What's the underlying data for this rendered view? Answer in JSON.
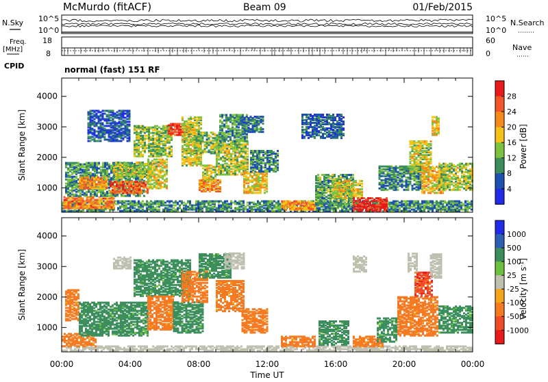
{
  "header": {
    "station": "McMurdo (fitACF)",
    "beam": "Beam 09",
    "date": "01/Feb/2015"
  },
  "top_panels": {
    "nsky_label": "N.Sky",
    "nsearch_label": "N.Search",
    "noise_ticks_left": [
      "10^5",
      "10^0"
    ],
    "noise_ticks_right": [
      "10^5",
      "10^0"
    ],
    "freq_label": "Freq.",
    "freq_unit": "[MHz]",
    "freq_ticks": [
      "18",
      "8"
    ],
    "nave_label": "Nave",
    "nave_ticks": [
      "60",
      "0"
    ],
    "cpid_label": "CPID",
    "cpid_value": "normal (fast) 151 RF"
  },
  "chart_data": [
    {
      "type": "heatmap",
      "name": "power-panel",
      "ylabel": "Slant Range [km]",
      "ylim": [
        200,
        4600
      ],
      "yticks": [
        1000,
        2000,
        3000,
        4000
      ],
      "xlim_hours": [
        0,
        24
      ],
      "colorbar": {
        "label": "Power [dB]",
        "ticks": [
          "28",
          "24",
          "20",
          "16",
          "12",
          "8",
          "4"
        ],
        "colors": [
          "#e81a1a",
          "#f4542a",
          "#f5891c",
          "#f5c21a",
          "#7cc240",
          "#3c8f5c",
          "#1e50b0",
          "#1f2be8"
        ],
        "range": [
          0,
          30
        ]
      },
      "regions": [
        {
          "t0": 0.0,
          "t1": 24.0,
          "r0": 210,
          "r1": 560,
          "v": 9
        },
        {
          "t0": 0.1,
          "t1": 3.0,
          "r0": 300,
          "r1": 700,
          "v": 22
        },
        {
          "t0": 0.2,
          "t1": 4.8,
          "r0": 700,
          "r1": 1800,
          "v": 10
        },
        {
          "t0": 1.0,
          "t1": 2.6,
          "r0": 950,
          "r1": 1350,
          "v": 20
        },
        {
          "t0": 2.8,
          "t1": 5.0,
          "r0": 800,
          "r1": 1200,
          "v": 24
        },
        {
          "t0": 3.0,
          "t1": 5.2,
          "r0": 1300,
          "r1": 1800,
          "v": 14
        },
        {
          "t0": 4.2,
          "t1": 6.4,
          "r0": 2000,
          "r1": 3000,
          "v": 13
        },
        {
          "t0": 5.0,
          "t1": 6.2,
          "r0": 950,
          "r1": 1900,
          "v": 16
        },
        {
          "t0": 6.2,
          "t1": 7.5,
          "r0": 2700,
          "r1": 3100,
          "v": 27
        },
        {
          "t0": 7.0,
          "t1": 8.2,
          "r0": 1700,
          "r1": 3300,
          "v": 15
        },
        {
          "t0": 7.7,
          "t1": 9.2,
          "r0": 2100,
          "r1": 2800,
          "v": 12
        },
        {
          "t0": 8.0,
          "t1": 9.2,
          "r0": 850,
          "r1": 1250,
          "v": 21
        },
        {
          "t0": 8.2,
          "t1": 9.0,
          "r0": 1200,
          "r1": 1700,
          "v": 15
        },
        {
          "t0": 9.0,
          "t1": 10.8,
          "r0": 1400,
          "r1": 2500,
          "v": 14
        },
        {
          "t0": 9.2,
          "t1": 10.8,
          "r0": 2500,
          "r1": 3400,
          "v": 10
        },
        {
          "t0": 10.6,
          "t1": 12.0,
          "r0": 800,
          "r1": 1500,
          "v": 17
        },
        {
          "t0": 11.0,
          "t1": 12.6,
          "r0": 1500,
          "r1": 2200,
          "v": 9
        },
        {
          "t0": 12.8,
          "t1": 14.8,
          "r0": 250,
          "r1": 550,
          "v": 20
        },
        {
          "t0": 14.8,
          "t1": 17.0,
          "r0": 400,
          "r1": 1400,
          "v": 11
        },
        {
          "t0": 15.8,
          "t1": 17.5,
          "r0": 650,
          "r1": 1200,
          "v": 16
        },
        {
          "t0": 17.0,
          "t1": 19.0,
          "r0": 220,
          "r1": 650,
          "v": 28
        },
        {
          "t0": 18.5,
          "t1": 21.0,
          "r0": 900,
          "r1": 1700,
          "v": 9
        },
        {
          "t0": 20.3,
          "t1": 21.6,
          "r0": 1500,
          "r1": 2500,
          "v": 15
        },
        {
          "t0": 21.0,
          "t1": 22.4,
          "r0": 800,
          "r1": 1700,
          "v": 18
        },
        {
          "t0": 21.6,
          "t1": 22.0,
          "r0": 2700,
          "r1": 3300,
          "v": 17
        },
        {
          "t0": 22.0,
          "t1": 24.0,
          "r0": 900,
          "r1": 1800,
          "v": 14
        },
        {
          "t0": 1.5,
          "t1": 4.0,
          "r0": 2500,
          "r1": 3500,
          "v": 6
        },
        {
          "t0": 10.5,
          "t1": 11.8,
          "r0": 2800,
          "r1": 3300,
          "v": 8
        },
        {
          "t0": 14.0,
          "t1": 16.5,
          "r0": 2600,
          "r1": 3400,
          "v": 6
        }
      ]
    },
    {
      "type": "heatmap",
      "name": "velocity-panel",
      "ylabel": "Slant Range [km]",
      "ylim": [
        200,
        4600
      ],
      "yticks": [
        1000,
        2000,
        3000,
        4000
      ],
      "xlim_hours": [
        0,
        24
      ],
      "xticks": [
        "00:00",
        "04:00",
        "08:00",
        "12:00",
        "16:00",
        "20:00",
        "00:00"
      ],
      "xlabel": "Time UT",
      "colorbar": {
        "label": "Velocity [m s",
        "label_sup": "-1",
        "label_end": "]",
        "ticks": [
          "1000",
          "500",
          "100",
          "25",
          "-25",
          "-100",
          "-500",
          "-1000"
        ],
        "colors": [
          "#1f2be8",
          "#2d5fb5",
          "#3c8f5c",
          "#6bc040",
          "#c0c0b0",
          "#f5a51a",
          "#f57a22",
          "#f04a2a",
          "#e81a1a"
        ],
        "values": [
          1200,
          750,
          300,
          60,
          0,
          -60,
          -300,
          -750,
          -1200
        ]
      },
      "regions": [
        {
          "t0": 0.0,
          "t1": 24.0,
          "r0": 210,
          "r1": 350,
          "v": 0
        },
        {
          "t0": 0.0,
          "t1": 2.0,
          "r0": 350,
          "r1": 800,
          "v": -300
        },
        {
          "t0": 0.2,
          "t1": 1.0,
          "r0": 1200,
          "r1": 2200,
          "v": -300
        },
        {
          "t0": 1.0,
          "t1": 5.0,
          "r0": 700,
          "r1": 1800,
          "v": 300
        },
        {
          "t0": 4.2,
          "t1": 7.5,
          "r0": 2000,
          "r1": 3200,
          "v": 300
        },
        {
          "t0": 5.0,
          "t1": 6.5,
          "r0": 900,
          "r1": 2000,
          "v": -300
        },
        {
          "t0": 6.5,
          "t1": 8.2,
          "r0": 800,
          "r1": 1800,
          "v": 300
        },
        {
          "t0": 7.0,
          "t1": 8.5,
          "r0": 1800,
          "r1": 2800,
          "v": -300
        },
        {
          "t0": 8.0,
          "t1": 9.8,
          "r0": 2600,
          "r1": 3400,
          "v": 300
        },
        {
          "t0": 9.0,
          "t1": 10.6,
          "r0": 1500,
          "r1": 2500,
          "v": -300
        },
        {
          "t0": 10.5,
          "t1": 12.0,
          "r0": 800,
          "r1": 1600,
          "v": -300
        },
        {
          "t0": 9.5,
          "t1": 10.6,
          "r0": 2900,
          "r1": 3400,
          "v": 0
        },
        {
          "t0": 12.8,
          "t1": 14.8,
          "r0": 350,
          "r1": 700,
          "v": -300
        },
        {
          "t0": 15.0,
          "t1": 16.8,
          "r0": 400,
          "r1": 1200,
          "v": 300
        },
        {
          "t0": 17.0,
          "t1": 18.8,
          "r0": 350,
          "r1": 700,
          "v": -300
        },
        {
          "t0": 18.4,
          "t1": 19.6,
          "r0": 500,
          "r1": 1300,
          "v": 300
        },
        {
          "t0": 19.6,
          "t1": 22.0,
          "r0": 700,
          "r1": 2000,
          "v": -300
        },
        {
          "t0": 20.6,
          "t1": 21.6,
          "r0": 2000,
          "r1": 2800,
          "v": -750
        },
        {
          "t0": 22.0,
          "t1": 24.0,
          "r0": 800,
          "r1": 1700,
          "v": 300
        },
        {
          "t0": 17.0,
          "t1": 17.8,
          "r0": 2800,
          "r1": 3300,
          "v": 0
        },
        {
          "t0": 20.2,
          "t1": 20.8,
          "r0": 2800,
          "r1": 3400,
          "v": 0
        },
        {
          "t0": 21.5,
          "t1": 22.2,
          "r0": 2600,
          "r1": 3400,
          "v": 0
        },
        {
          "t0": 3.0,
          "t1": 4.0,
          "r0": 2900,
          "r1": 3300,
          "v": 0
        }
      ]
    }
  ]
}
